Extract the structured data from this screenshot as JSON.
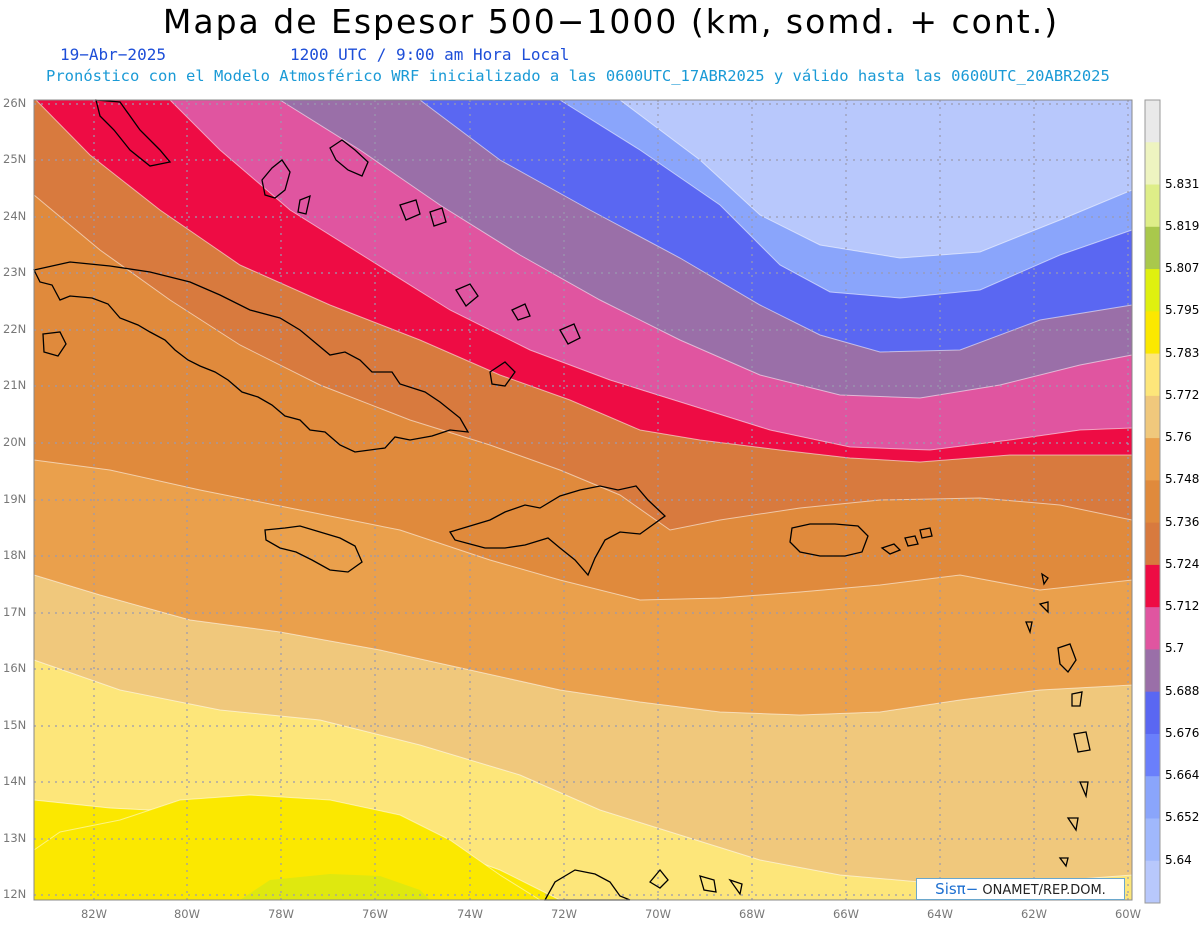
{
  "header": {
    "title": "Mapa de Espesor 500−1000 (km, somd. + cont.)",
    "date": "19−Abr−2025",
    "time": "1200 UTC / 9:00 am Hora Local",
    "description": "Pronóstico con el Modelo Atmosférico WRF inicializado a las 0600UTC_17ABR2025 y válido hasta las  0600UTC_20ABR2025"
  },
  "credit": {
    "logo": "Sisπ−",
    "text": " ONAMET/REP.DOM."
  },
  "axes": {
    "lat_labels": [
      "26N",
      "25N",
      "24N",
      "23N",
      "22N",
      "21N",
      "20N",
      "19N",
      "18N",
      "17N",
      "16N",
      "15N",
      "14N",
      "13N",
      "12N"
    ],
    "lon_labels": [
      "82W",
      "80W",
      "78W",
      "76W",
      "74W",
      "72W",
      "70W",
      "68W",
      "66W",
      "64W",
      "62W",
      "60W"
    ]
  },
  "colorbar": {
    "levels": [
      "5.64",
      "5.652",
      "5.664",
      "5.676",
      "5.688",
      "5.7",
      "5.712",
      "5.724",
      "5.736",
      "5.748",
      "5.76",
      "5.772",
      "5.783",
      "5.795",
      "5.807",
      "5.819",
      "5.831"
    ],
    "colors": [
      "#b8c8fc",
      "#a0b8fc",
      "#8aa5fb",
      "#6a7ffb",
      "#5a67f2",
      "#9a6fa8",
      "#e055a0",
      "#ee0c44",
      "#d87a3e",
      "#e08a3c",
      "#eaa04c",
      "#f0c87c",
      "#fde67a",
      "#fbe800",
      "#dff00f",
      "#a9c84c",
      "#deee88",
      "#eef4c0",
      "#e9e9e9"
    ]
  },
  "map": {
    "field_colors": [
      "#b8c8fc",
      "#8aa5fb",
      "#5a67f2",
      "#9a6fa8",
      "#e055a0",
      "#ee0c44",
      "#d87a3e",
      "#e08a3c",
      "#eaa04c",
      "#f0c87c",
      "#fde67a",
      "#fbe800",
      "#dfe80f"
    ],
    "coast_color": "#000000",
    "grid_color": "#9a9ab0"
  }
}
